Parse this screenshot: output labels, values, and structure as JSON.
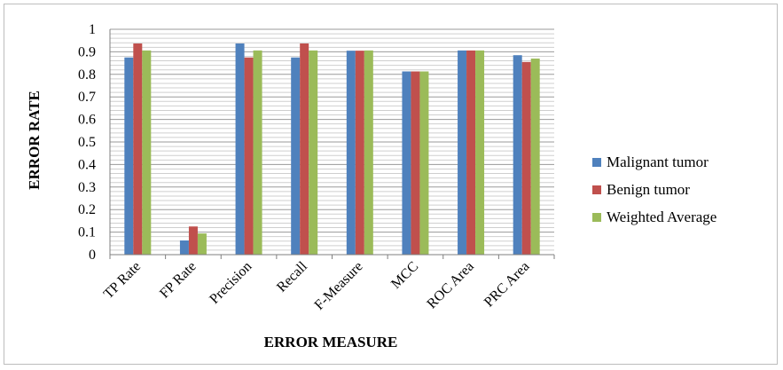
{
  "chart_data": {
    "type": "bar",
    "title": "",
    "xlabel": "ERROR MEASURE",
    "ylabel": "ERROR RATE",
    "ylim": [
      0,
      1
    ],
    "y_ticks": [
      "0",
      "0.1",
      "0.2",
      "0.3",
      "0.4",
      "0.5",
      "0.6",
      "0.7",
      "0.8",
      "0.9",
      "1"
    ],
    "grid": true,
    "legend_position": "right",
    "categories": [
      "TP Rate",
      "FP Rate",
      "Precision",
      "Recall",
      "F-Measure",
      "MCC",
      "ROC Area",
      "PRC Area"
    ],
    "series": [
      {
        "name": "Malignant tumor",
        "color": "#4f81bd",
        "values": [
          0.875,
          0.063,
          0.937,
          0.875,
          0.905,
          0.813,
          0.906,
          0.885
        ]
      },
      {
        "name": "Benign tumor",
        "color": "#c0504d",
        "values": [
          0.937,
          0.125,
          0.875,
          0.937,
          0.905,
          0.813,
          0.906,
          0.855
        ]
      },
      {
        "name": "Weighted Average",
        "color": "#9bbb59",
        "values": [
          0.906,
          0.094,
          0.906,
          0.906,
          0.906,
          0.813,
          0.906,
          0.87
        ]
      }
    ]
  }
}
